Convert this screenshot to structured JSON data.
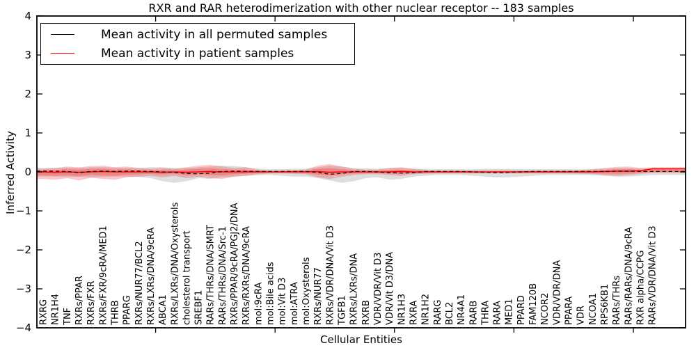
{
  "chart_data": {
    "type": "line",
    "title": "RXR and RAR heterodimerization with other nuclear receptor -- 183 samples",
    "xlabel": "Cellular Entities",
    "ylabel": "Inferred Activity",
    "ylim": [
      -4,
      4
    ],
    "yticks": [
      -4,
      -3,
      -2,
      -1,
      0,
      1,
      2,
      3,
      4
    ],
    "xtick_major_indices": [
      10,
      20,
      30,
      40,
      50
    ],
    "grid": false,
    "legend_position": "upper left",
    "categories": [
      "RXRG",
      "NR1H4",
      "TNF",
      "RXRs/PPAR",
      "RXRs/FXR",
      "RXRs/FXR/9cRA/MED1",
      "THRB",
      "PPARG",
      "RXRs/NUR77/BCL2",
      "RXRs/LXRs/DNA/9cRA",
      "ABCA1",
      "RXRs/LXRs/DNA/Oxysterols",
      "cholesterol transport",
      "SREBF1",
      "RARs/THRs/DNA/SMRT",
      "RARs/THRs/DNA/Src-1",
      "RXRs/PPAR/9cRA/PGJ2/DNA",
      "RXRs/RXRs/DNA/9cRA",
      "mol:9cRA",
      "mol:Bile acids",
      "mol:Vit D3",
      "mol:ATRA",
      "mol:Oxysterols",
      "RXRs/NUR77",
      "RXRs/VDR/DNA/Vit D3",
      "TGFB1",
      "RXRs/LXRs/DNA",
      "RXRB",
      "VDR/VDR/Vit D3",
      "VDR/Vit D3/DNA",
      "NR1H3",
      "RXRA",
      "NR1H2",
      "RARG",
      "BCL2",
      "NR4A1",
      "RARB",
      "THRA",
      "RARA",
      "MED1",
      "PPARD",
      "FAM120B",
      "NCOR2",
      "VDR/VDR/DNA",
      "PPARA",
      "VDR",
      "NCOA1",
      "RPS6KB1",
      "RARs/THRs",
      "RARs/RARs/DNA/9cRA",
      "RXR alpha/CCPG",
      "RARs/VDR/DNA/Vit D3"
    ],
    "series": [
      {
        "name": "Mean activity in all permuted samples",
        "color": "#000000",
        "line_style": "dashed",
        "values": [
          0.02,
          0.02,
          0.01,
          -0.02,
          0.01,
          0.02,
          0.01,
          0.02,
          0.02,
          0.01,
          0.0,
          -0.01,
          -0.04,
          -0.05,
          -0.03,
          0.01,
          0.02,
          0.01,
          0.01,
          0.01,
          0.01,
          0.01,
          0.01,
          -0.01,
          -0.06,
          -0.04,
          0.01,
          0.01,
          0.0,
          -0.02,
          -0.03,
          -0.02,
          0.01,
          0.01,
          0.01,
          0.01,
          0.0,
          -0.01,
          -0.02,
          -0.01,
          0.0,
          0.01,
          0.01,
          0.01,
          0.01,
          0.01,
          0.01,
          0.01,
          0.02,
          0.02,
          0.01,
          0.01
        ]
      },
      {
        "name": "Mean activity in patient samples",
        "color": "#ff0000",
        "line_style": "solid",
        "values": [
          0.0,
          -0.01,
          0.0,
          -0.01,
          0.0,
          0.01,
          0.0,
          0.0,
          0.0,
          0.0,
          -0.01,
          0.0,
          -0.01,
          0.0,
          0.01,
          0.0,
          0.0,
          0.0,
          0.0,
          0.0,
          0.0,
          0.0,
          0.0,
          0.01,
          -0.01,
          0.0,
          0.0,
          0.0,
          0.0,
          0.0,
          0.01,
          0.0,
          0.0,
          0.0,
          0.0,
          0.0,
          0.0,
          0.0,
          0.0,
          0.0,
          0.0,
          0.0,
          0.0,
          0.0,
          0.0,
          0.0,
          0.0,
          0.01,
          0.02,
          0.02,
          0.03,
          0.08
        ]
      }
    ],
    "bands": [
      {
        "name": "permuted samples activity spread",
        "color": "#000000",
        "opacity": 0.13,
        "upper": [
          0.1,
          0.1,
          0.11,
          0.1,
          0.12,
          0.12,
          0.11,
          0.1,
          0.1,
          0.12,
          0.12,
          0.1,
          0.1,
          0.12,
          0.14,
          0.16,
          0.15,
          0.12,
          0.08,
          0.07,
          0.07,
          0.08,
          0.08,
          0.12,
          0.16,
          0.14,
          0.1,
          0.09,
          0.08,
          0.1,
          0.1,
          0.08,
          0.08,
          0.07,
          0.07,
          0.07,
          0.07,
          0.08,
          0.08,
          0.08,
          0.07,
          0.07,
          0.07,
          0.07,
          0.07,
          0.07,
          0.08,
          0.08,
          0.1,
          0.1,
          0.09,
          0.08
        ],
        "lower": [
          -0.12,
          -0.12,
          -0.13,
          -0.12,
          -0.14,
          -0.13,
          -0.12,
          -0.12,
          -0.13,
          -0.16,
          -0.24,
          -0.28,
          -0.24,
          -0.16,
          -0.18,
          -0.14,
          -0.12,
          -0.1,
          -0.08,
          -0.08,
          -0.1,
          -0.12,
          -0.12,
          -0.16,
          -0.22,
          -0.28,
          -0.24,
          -0.16,
          -0.14,
          -0.2,
          -0.18,
          -0.12,
          -0.1,
          -0.08,
          -0.08,
          -0.08,
          -0.1,
          -0.12,
          -0.14,
          -0.14,
          -0.12,
          -0.1,
          -0.08,
          -0.08,
          -0.08,
          -0.08,
          -0.08,
          -0.1,
          -0.12,
          -0.12,
          -0.1,
          -0.08
        ]
      },
      {
        "name": "patient samples activity spread",
        "color": "#ff0000",
        "opacity": 0.22,
        "upper": [
          0.08,
          0.1,
          0.14,
          0.12,
          0.15,
          0.16,
          0.12,
          0.14,
          0.1,
          0.08,
          0.1,
          0.08,
          0.12,
          0.16,
          0.18,
          0.14,
          0.1,
          0.12,
          0.06,
          0.04,
          0.04,
          0.05,
          0.06,
          0.16,
          0.2,
          0.14,
          0.08,
          0.06,
          0.06,
          0.1,
          0.12,
          0.08,
          0.05,
          0.04,
          0.04,
          0.04,
          0.04,
          0.04,
          0.04,
          0.04,
          0.04,
          0.04,
          0.04,
          0.04,
          0.04,
          0.05,
          0.06,
          0.1,
          0.13,
          0.14,
          0.1,
          0.12
        ],
        "lower": [
          -0.18,
          -0.2,
          -0.16,
          -0.22,
          -0.15,
          -0.18,
          -0.2,
          -0.14,
          -0.12,
          -0.1,
          -0.14,
          -0.1,
          -0.16,
          -0.12,
          -0.16,
          -0.18,
          -0.12,
          -0.1,
          -0.06,
          -0.04,
          -0.04,
          -0.05,
          -0.06,
          -0.14,
          -0.18,
          -0.12,
          -0.08,
          -0.06,
          -0.06,
          -0.08,
          -0.1,
          -0.06,
          -0.05,
          -0.04,
          -0.04,
          -0.04,
          -0.04,
          -0.04,
          -0.04,
          -0.04,
          -0.04,
          -0.04,
          -0.04,
          -0.04,
          -0.04,
          -0.05,
          -0.06,
          -0.08,
          -0.1,
          -0.08,
          -0.05,
          -0.02
        ]
      }
    ]
  }
}
